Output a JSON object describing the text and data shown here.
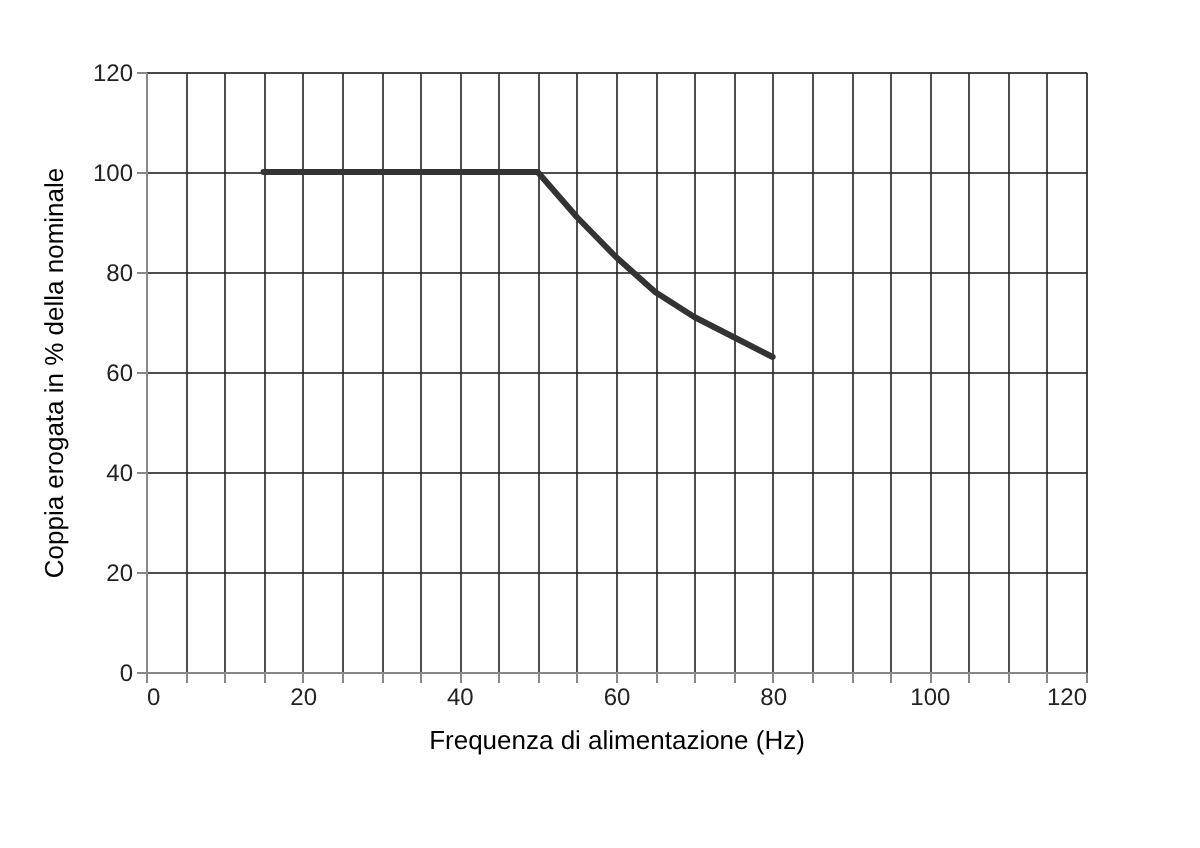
{
  "chart_data": {
    "type": "line",
    "xlabel": "Frequenza di alimentazione (Hz)",
    "ylabel": "Coppia erogata in % della nominale",
    "x": [
      15,
      50,
      55,
      60,
      65,
      70,
      75,
      80
    ],
    "series": [
      {
        "color": "#333333",
        "values": [
          100,
          100,
          91,
          83,
          76,
          71,
          67,
          63
        ]
      }
    ],
    "xlim": [
      0,
      120
    ],
    "ylim": [
      0,
      120
    ],
    "xticks": [
      0,
      {
        "value": 5,
        "label": null
      },
      {
        "value": 10,
        "label": null
      },
      {
        "value": 15,
        "label": null
      },
      20,
      {
        "value": 25,
        "label": null
      },
      {
        "value": 30,
        "label": null
      },
      {
        "value": 35,
        "label": null
      },
      40,
      {
        "value": 45,
        "label": null
      },
      {
        "value": 50,
        "label": null
      },
      {
        "value": 55,
        "label": null
      },
      60,
      {
        "value": 65,
        "label": null
      },
      {
        "value": 70,
        "label": null
      },
      {
        "value": 75,
        "label": null
      },
      80,
      {
        "value": 85,
        "label": null
      },
      {
        "value": 90,
        "label": null
      },
      {
        "value": 95,
        "label": null
      },
      100,
      {
        "value": 105,
        "label": null
      },
      {
        "value": 110,
        "label": null
      },
      {
        "value": 115,
        "label": null
      },
      120
    ],
    "yticks": [
      0,
      20,
      40,
      60,
      80,
      100,
      120
    ],
    "grid": true,
    "marker": "none",
    "line_style": "solid"
  }
}
